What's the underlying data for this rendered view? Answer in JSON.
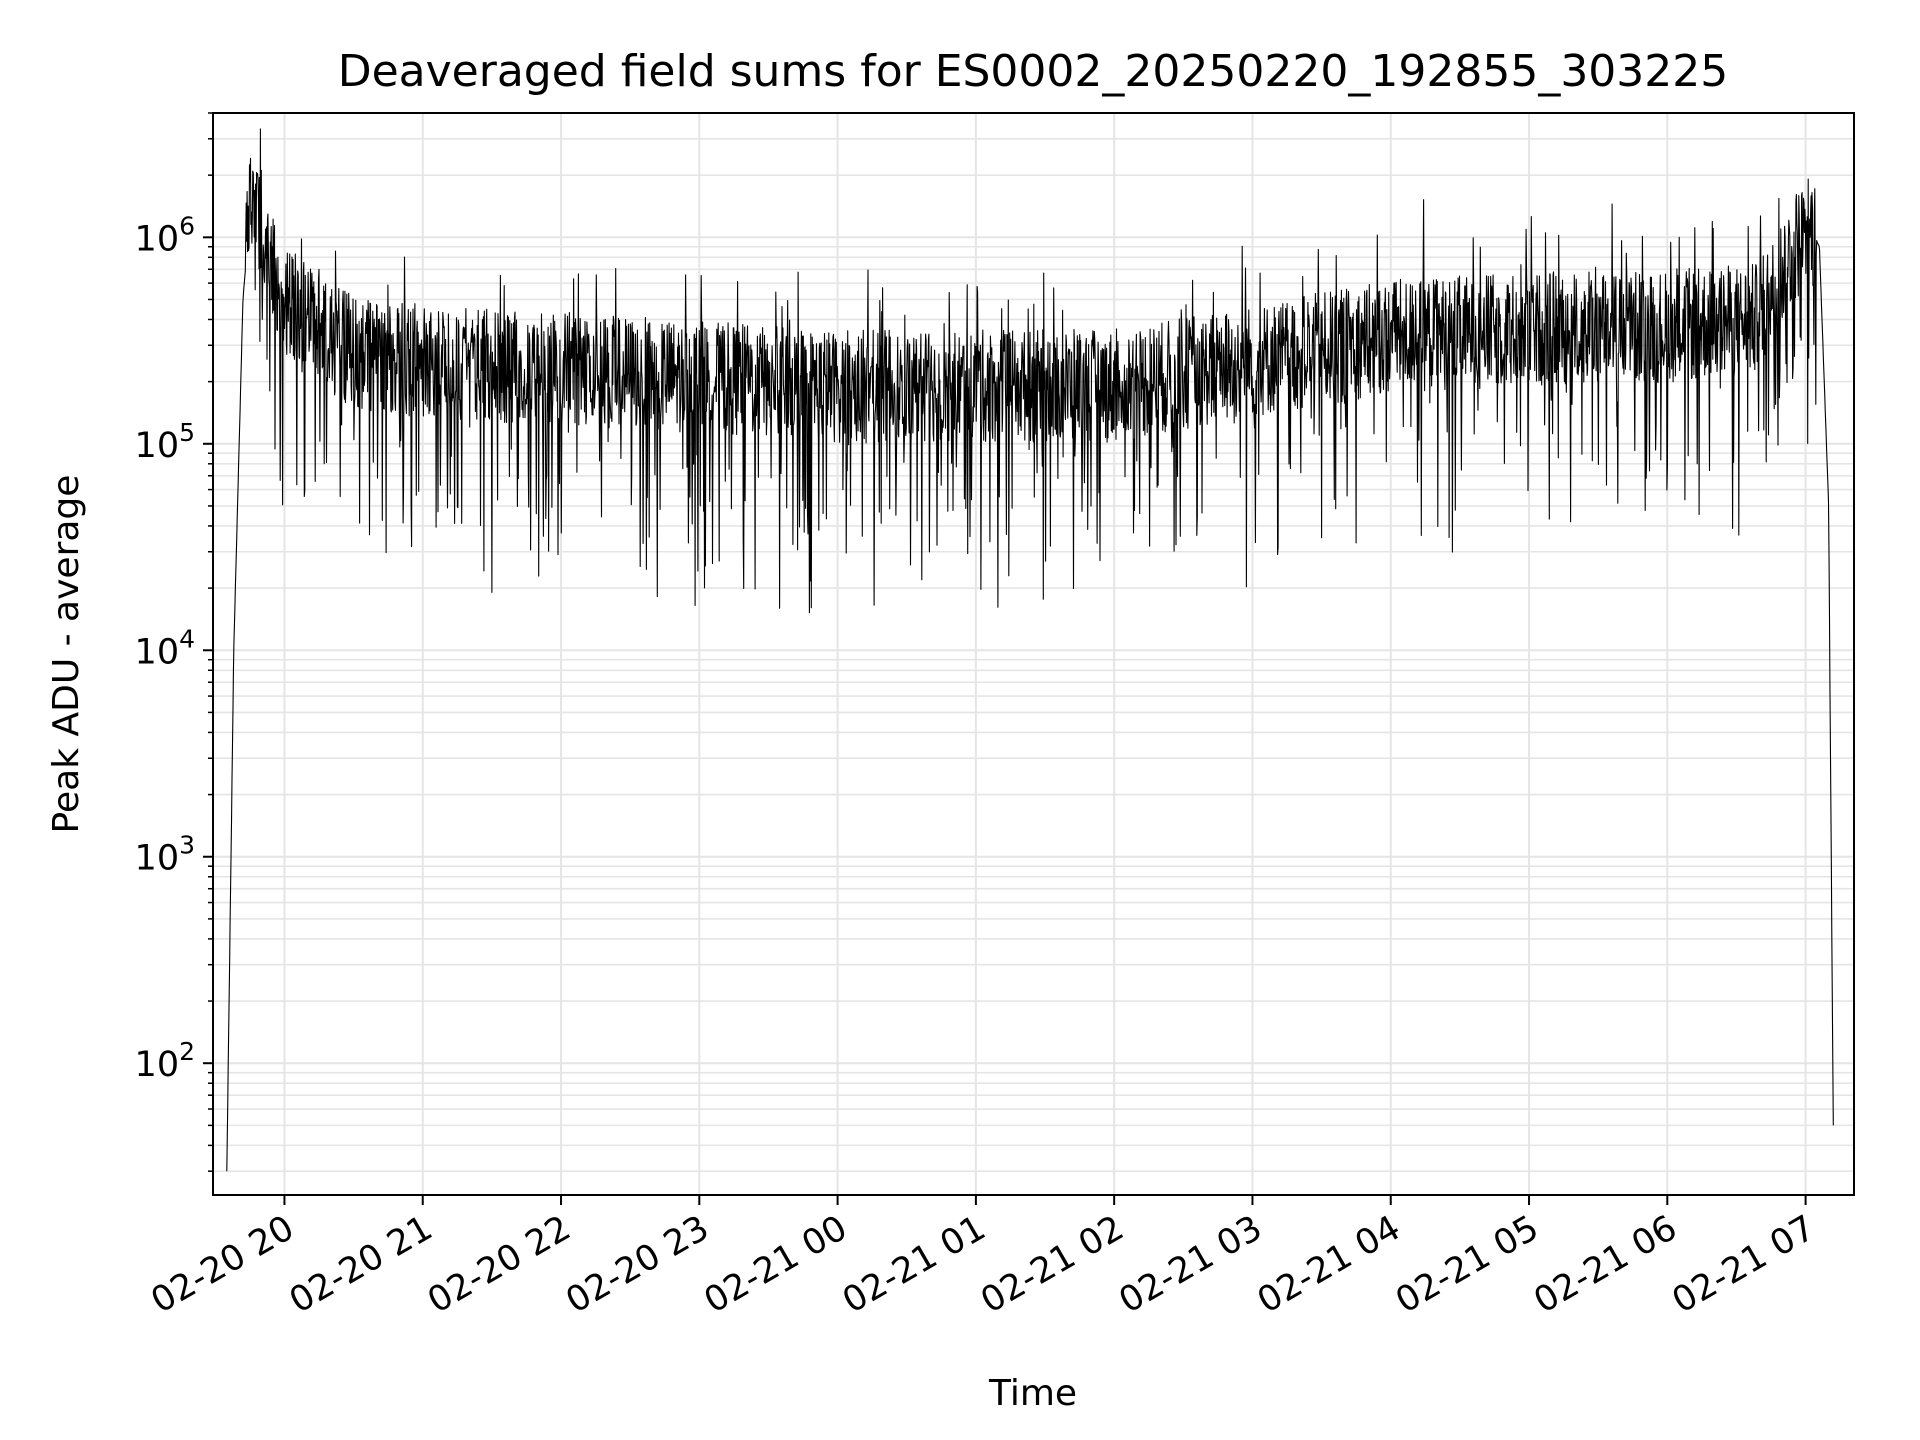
{
  "chart_data": {
    "type": "line",
    "title": "Deaveraged field sums for ES0002_20250220_192855_303225",
    "xlabel": "Time",
    "ylabel": "Peak ADU - average",
    "yscale": "log",
    "ylim": [
      23,
      4000000
    ],
    "xlim": [
      "2025-02-20 19:29",
      "2025-02-21 07:21"
    ],
    "grid": true,
    "line_color": "#000000",
    "grid_color": "#e5e5e5",
    "x_ticks": [
      {
        "t": "2025-02-20 20:00",
        "label": "02-20 20"
      },
      {
        "t": "2025-02-20 21:00",
        "label": "02-20 21"
      },
      {
        "t": "2025-02-20 22:00",
        "label": "02-20 22"
      },
      {
        "t": "2025-02-20 23:00",
        "label": "02-20 23"
      },
      {
        "t": "2025-02-21 00:00",
        "label": "02-21 00"
      },
      {
        "t": "2025-02-21 01:00",
        "label": "02-21 01"
      },
      {
        "t": "2025-02-21 02:00",
        "label": "02-21 02"
      },
      {
        "t": "2025-02-21 03:00",
        "label": "02-21 03"
      },
      {
        "t": "2025-02-21 04:00",
        "label": "02-21 04"
      },
      {
        "t": "2025-02-21 05:00",
        "label": "02-21 05"
      },
      {
        "t": "2025-02-21 06:00",
        "label": "02-21 06"
      },
      {
        "t": "2025-02-21 07:00",
        "label": "02-21 07"
      }
    ],
    "y_ticks": [
      {
        "value": 100,
        "base": "10",
        "exp": "2"
      },
      {
        "value": 1000,
        "base": "10",
        "exp": "3"
      },
      {
        "value": 10000,
        "base": "10",
        "exp": "4"
      },
      {
        "value": 100000,
        "base": "10",
        "exp": "5"
      },
      {
        "value": 1000000,
        "base": "10",
        "exp": "6"
      }
    ],
    "series": [
      {
        "x": [
          "2025-02-20 19:35",
          "2025-02-20 19:38",
          "2025-02-20 19:42",
          "2025-02-20 19:45",
          "2025-02-20 19:50",
          "2025-02-20 19:55",
          "2025-02-20 20:00",
          "2025-02-20 20:15",
          "2025-02-20 20:30",
          "2025-02-20 21:00",
          "2025-02-20 22:00",
          "2025-02-20 23:00",
          "2025-02-21 00:00",
          "2025-02-21 01:00",
          "2025-02-21 02:00",
          "2025-02-21 03:00",
          "2025-02-21 04:00",
          "2025-02-21 05:00",
          "2025-02-21 06:00",
          "2025-02-21 06:40",
          "2025-02-21 06:55",
          "2025-02-21 07:02",
          "2025-02-21 07:06",
          "2025-02-21 07:10",
          "2025-02-21 07:12"
        ],
        "y": [
          30,
          10000,
          500000,
          1300000,
          1200000,
          700000,
          500000,
          350000,
          280000,
          250000,
          230000,
          210000,
          190000,
          190000,
          190000,
          250000,
          330000,
          360000,
          370000,
          400000,
          900000,
          1100000,
          900000,
          50000,
          50
        ]
      }
    ]
  }
}
